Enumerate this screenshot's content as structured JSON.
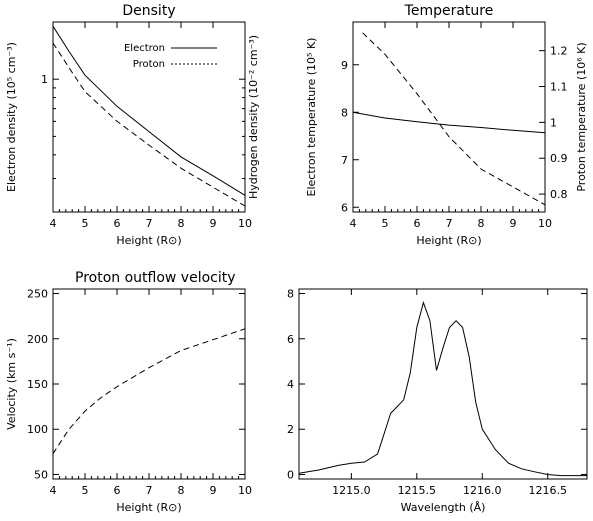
{
  "chart_data": [
    {
      "type": "line",
      "title": "Density",
      "xlabel": "Height (R⊙)",
      "ylabel": "Electron density (10⁵ cm⁻³)",
      "ylabel_right": "Hydrogen density (10⁻² cm⁻³)",
      "xlim": [
        4,
        10
      ],
      "ylim": [
        0.2,
        2.0
      ],
      "yscale": "log",
      "xticks": [
        4,
        5,
        6,
        7,
        8,
        9,
        10
      ],
      "yticks": [
        1
      ],
      "legend": "top-right",
      "series": [
        {
          "name": "Electron",
          "style": "solid",
          "x": [
            4,
            4.5,
            5,
            6,
            7,
            8,
            9,
            10
          ],
          "y": [
            1.9,
            1.4,
            1.05,
            0.72,
            0.53,
            0.39,
            0.31,
            0.245
          ]
        },
        {
          "name": "Proton",
          "style": "dashed",
          "x": [
            4,
            4.5,
            5,
            6,
            7,
            8,
            9,
            10
          ],
          "y": [
            1.55,
            1.15,
            0.86,
            0.6,
            0.45,
            0.34,
            0.27,
            0.215
          ]
        }
      ]
    },
    {
      "type": "line",
      "title": "Temperature",
      "xlabel": "Height (R⊙)",
      "ylabel": "Electron temperature (10⁵ K)",
      "ylabel_right": "Proton temperature (10⁶ K)",
      "xlim": [
        4,
        10
      ],
      "ylim": [
        5.9,
        9.9
      ],
      "ylim_right": [
        0.75,
        1.28
      ],
      "xticks": [
        4,
        5,
        6,
        7,
        8,
        9,
        10
      ],
      "yticks": [
        6,
        7,
        8,
        9
      ],
      "yticks_right": [
        0.8,
        0.9,
        1.0,
        1.1,
        1.2
      ],
      "series": [
        {
          "name": "Electron temperature",
          "style": "solid",
          "axis": "left",
          "x": [
            4,
            5,
            6,
            7,
            8,
            9,
            10
          ],
          "y": [
            8.0,
            7.88,
            7.8,
            7.73,
            7.68,
            7.62,
            7.57
          ]
        },
        {
          "name": "Proton temperature",
          "style": "dashed",
          "axis": "right",
          "x": [
            4.3,
            5,
            6,
            7,
            8,
            9,
            10
          ],
          "y": [
            1.25,
            1.19,
            1.08,
            0.96,
            0.87,
            0.82,
            0.77
          ]
        }
      ]
    },
    {
      "type": "line",
      "title": "Proton outflow velocity",
      "xlabel": "Height (R⊙)",
      "ylabel": "Velocity (km s⁻¹)",
      "xlim": [
        4,
        10
      ],
      "ylim": [
        45,
        255
      ],
      "xticks": [
        4,
        5,
        6,
        7,
        8,
        9,
        10
      ],
      "yticks": [
        50,
        100,
        150,
        200,
        250
      ],
      "series": [
        {
          "style": "dashed",
          "x": [
            4,
            4.5,
            5,
            5.5,
            6,
            7,
            8,
            9,
            10
          ],
          "y": [
            73,
            100,
            120,
            135,
            147,
            168,
            187,
            199,
            211
          ]
        }
      ]
    },
    {
      "type": "line",
      "title": "",
      "xlabel": "Wavelength (Å)",
      "ylabel": "",
      "xlim": [
        1214.6,
        1216.8
      ],
      "ylim": [
        -0.2,
        8.2
      ],
      "xticks": [
        1215.0,
        1215.5,
        1216.0,
        1216.5
      ],
      "xtick_labels": [
        "1215.0",
        "1215.5",
        "1216.0",
        "1216.5"
      ],
      "yticks": [
        0,
        2,
        4,
        6,
        8
      ],
      "series": [
        {
          "style": "solid",
          "x": [
            1214.6,
            1214.75,
            1214.9,
            1215.0,
            1215.1,
            1215.2,
            1215.25,
            1215.3,
            1215.35,
            1215.4,
            1215.45,
            1215.5,
            1215.55,
            1215.6,
            1215.65,
            1215.7,
            1215.75,
            1215.8,
            1215.85,
            1215.9,
            1215.95,
            1216.0,
            1216.1,
            1216.2,
            1216.3,
            1216.4,
            1216.5,
            1216.6,
            1216.7,
            1216.8
          ],
          "y": [
            0.05,
            0.2,
            0.4,
            0.5,
            0.55,
            0.9,
            1.8,
            2.7,
            3.0,
            3.3,
            4.5,
            6.5,
            7.6,
            6.8,
            4.6,
            5.6,
            6.5,
            6.8,
            6.5,
            5.2,
            3.2,
            2.0,
            1.1,
            0.5,
            0.25,
            0.12,
            0.0,
            -0.05,
            -0.05,
            -0.05
          ]
        }
      ]
    }
  ]
}
